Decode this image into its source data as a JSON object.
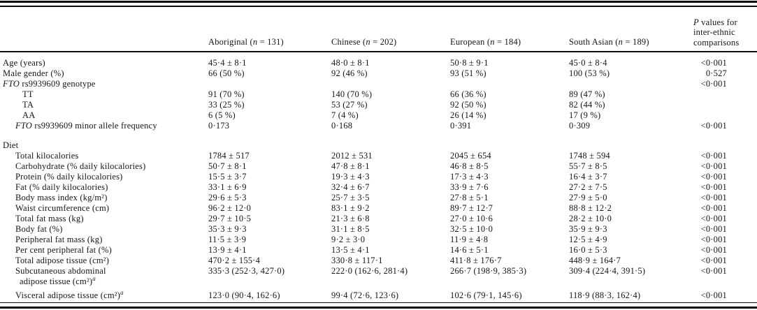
{
  "colors": {
    "rule": "#0e0e0e",
    "text": "#151515",
    "background": "#ffffff"
  },
  "table": {
    "column_headers": [
      {
        "parts": [
          {
            "t": "Aboriginal ("
          },
          {
            "t": "n",
            "i": true
          },
          {
            "t": " = 131)"
          }
        ]
      },
      {
        "parts": [
          {
            "t": "Chinese ("
          },
          {
            "t": "n",
            "i": true
          },
          {
            "t": " = 202)"
          }
        ]
      },
      {
        "parts": [
          {
            "t": "European ("
          },
          {
            "t": "n",
            "i": true
          },
          {
            "t": " = 184)"
          }
        ]
      },
      {
        "parts": [
          {
            "t": "South Asian ("
          },
          {
            "t": "n",
            "i": true
          },
          {
            "t": " = 189)"
          }
        ]
      }
    ],
    "p_header_lines": [
      [
        {
          "t": "P",
          "i": true
        },
        {
          "t": " values for"
        }
      ],
      [
        {
          "t": "inter-ethnic"
        }
      ],
      [
        {
          "t": "comparisons"
        }
      ]
    ],
    "rows": [
      {
        "label": [
          {
            "t": "Age (years)"
          }
        ],
        "indent": 0,
        "values": [
          "45·4 ± 8·1",
          "48·0 ± 8·1",
          "50·8 ± 9·1",
          "45·0 ± 8·4"
        ],
        "p": "<0·001"
      },
      {
        "label": [
          {
            "t": "Male gender (%)"
          }
        ],
        "indent": 0,
        "values": [
          "66 (50 %)",
          "92 (46 %)",
          "93 (51 %)",
          "100 (53 %)"
        ],
        "p": "0·527"
      },
      {
        "label": [
          {
            "t": "FTO",
            "i": true
          },
          {
            "t": " rs9939609 genotype"
          }
        ],
        "indent": 0,
        "values": [
          "",
          "",
          "",
          ""
        ],
        "p": "<0·001"
      },
      {
        "label": [
          {
            "t": "TT"
          }
        ],
        "indent": 2,
        "values": [
          "91 (70 %)",
          "140 (70 %)",
          "66 (36 %)",
          "89 (47 %)"
        ],
        "p": ""
      },
      {
        "label": [
          {
            "t": "TA"
          }
        ],
        "indent": 2,
        "values": [
          "33 (25 %)",
          "53 (27 %)",
          "92 (50 %)",
          "82 (44 %)"
        ],
        "p": ""
      },
      {
        "label": [
          {
            "t": "AA"
          }
        ],
        "indent": 2,
        "values": [
          "6 (5 %)",
          "7 (4 %)",
          "26 (14 %)",
          "17 (9 %)"
        ],
        "p": ""
      },
      {
        "label": [
          {
            "t": "FTO",
            "i": true
          },
          {
            "t": " rs9939609 minor allele frequency"
          }
        ],
        "indent": 1,
        "values": [
          "0·173",
          "0·168",
          "0·391",
          "0·309"
        ],
        "p": "<0·001"
      },
      {
        "label": [
          {
            "t": "Diet"
          }
        ],
        "indent": 0,
        "section_gap": true,
        "values": [
          "",
          "",
          "",
          ""
        ],
        "p": ""
      },
      {
        "label": [
          {
            "t": "Total kilocalories"
          }
        ],
        "indent": 1,
        "values": [
          "1784 ± 517",
          "2012 ± 531",
          "2045 ± 654",
          "1748 ± 594"
        ],
        "p": "<0·001"
      },
      {
        "label": [
          {
            "t": "Carbohydrate (% daily kilocalories)"
          }
        ],
        "indent": 1,
        "values": [
          "50·7 ± 8·1",
          "47·8 ± 8·1",
          "46·8 ± 8·5",
          "55·7 ± 8·5"
        ],
        "p": "<0·001"
      },
      {
        "label": [
          {
            "t": "Protein (% daily kilocalories)"
          }
        ],
        "indent": 1,
        "values": [
          "15·5 ± 3·7",
          "19·3 ± 4·3",
          "17·3 ± 4·3",
          "16·4 ± 3·7"
        ],
        "p": "<0·001"
      },
      {
        "label": [
          {
            "t": "Fat (% daily kilocalories)"
          }
        ],
        "indent": 1,
        "values": [
          "33·1 ± 6·9",
          "32·4 ± 6·7",
          "33·9 ± 7·6",
          "27·2 ± 7·5"
        ],
        "p": "<0·001"
      },
      {
        "label": [
          {
            "t": "Body mass index (kg/m²)"
          }
        ],
        "indent": 1,
        "values": [
          "29·6 ± 5·3",
          "25·7 ± 3·5",
          "27·8 ± 5·1",
          "27·9 ± 5·0"
        ],
        "p": "<0·001"
      },
      {
        "label": [
          {
            "t": "Waist circumference (cm)"
          }
        ],
        "indent": 1,
        "values": [
          "96·2 ± 12·0",
          "83·1 ± 9·2",
          "89·7 ± 12·7",
          "88·8 ± 12·2"
        ],
        "p": "<0·001"
      },
      {
        "label": [
          {
            "t": "Total fat mass (kg)"
          }
        ],
        "indent": 1,
        "values": [
          "29·7 ± 10·5",
          "21·3 ± 6·8",
          "27·0 ± 10·6",
          "28·2 ± 10·0"
        ],
        "p": "<0·001"
      },
      {
        "label": [
          {
            "t": "Body fat (%)"
          }
        ],
        "indent": 1,
        "values": [
          "35·3 ± 9·3",
          "31·1 ± 8·5",
          "32·5 ± 10·0",
          "35·9 ± 9·3"
        ],
        "p": "<0·001"
      },
      {
        "label": [
          {
            "t": "Peripheral fat mass (kg)"
          }
        ],
        "indent": 1,
        "values": [
          "11·5 ± 3·9",
          "9·2 ± 3·0",
          "11·9 ± 4·8",
          "12·5 ± 4·9"
        ],
        "p": "<0·001"
      },
      {
        "label": [
          {
            "t": "Per cent peripheral fat (%)"
          }
        ],
        "indent": 1,
        "values": [
          "13·9 ± 4·1",
          "13·5 ± 4·1",
          "14·6 ± 5·1",
          "16·0 ± 5·3"
        ],
        "p": "<0·001"
      },
      {
        "label": [
          {
            "t": "Total adipose tissue (cm²)"
          }
        ],
        "indent": 1,
        "values": [
          "470·2 ± 155·4",
          "330·8 ± 117·1",
          "411·8 ± 176·7",
          "448·9 ± 164·7"
        ],
        "p": "<0·001"
      },
      {
        "label": [
          {
            "t": "Subcutaneous abdominal"
          }
        ],
        "indent": 1,
        "sublabel": [
          {
            "t": "adipose tissue (cm²)"
          },
          {
            "t": "a",
            "i": true,
            "sup": true
          }
        ],
        "values": [
          "335·3 (252·3, 427·0)",
          "222·0 (162·6, 281·4)",
          "266·7 (198·9, 385·3)",
          "309·4 (224·4, 391·5)"
        ],
        "p": "<0·001"
      },
      {
        "label": [
          {
            "t": "Visceral adipose tissue (cm²)"
          },
          {
            "t": "a",
            "i": true,
            "sup": true
          }
        ],
        "indent": 1,
        "row_gap": true,
        "values": [
          "123·0 (90·4, 162·6)",
          "99·4 (72·6, 123·6)",
          "102·6 (79·1, 145·6)",
          "118·9 (88·3, 162·4)"
        ],
        "p": "<0·001"
      }
    ]
  }
}
